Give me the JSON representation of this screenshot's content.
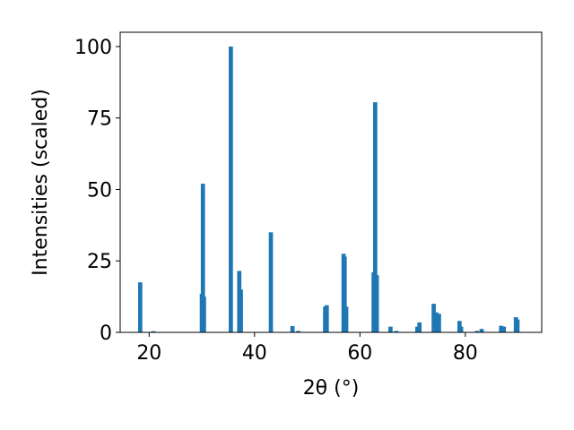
{
  "chart_data": {
    "type": "bar",
    "xlabel": "2θ (°)",
    "ylabel": "Intensities (scaled)",
    "xlim": [
      14.5,
      94.5
    ],
    "ylim": [
      0,
      105
    ],
    "xticks": [
      20,
      40,
      60,
      80
    ],
    "yticks": [
      0,
      25,
      50,
      75,
      100
    ],
    "bar_width": 0.8,
    "grid": false,
    "series": [
      {
        "color": "#1f77b4",
        "x": [
          18.3,
          20.8,
          30.0,
          30.2,
          30.4,
          35.5,
          37.1,
          37.4,
          43.1,
          47.2,
          48.3,
          53.4,
          53.7,
          56.9,
          57.1,
          57.4,
          62.6,
          62.9,
          63.2,
          65.8,
          66.9,
          70.9,
          71.3,
          74.0,
          74.5,
          75.0,
          78.9,
          79.2,
          82.2,
          83.1,
          86.8,
          87.3,
          89.6,
          89.9
        ],
        "values": [
          17.5,
          0.4,
          13.5,
          52.0,
          12.5,
          100.0,
          21.5,
          15.0,
          35.0,
          2.2,
          0.5,
          9.0,
          9.5,
          27.5,
          26.5,
          9.0,
          21.0,
          80.5,
          20.0,
          2.0,
          0.5,
          2.0,
          3.5,
          10.0,
          7.0,
          6.5,
          4.0,
          2.0,
          0.5,
          1.2,
          2.3,
          2.0,
          5.3,
          4.5
        ]
      }
    ]
  }
}
